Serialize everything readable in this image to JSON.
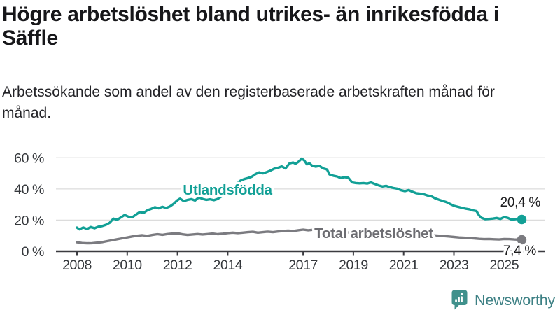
{
  "header": {
    "title": "Högre arbetslöshet bland utrikes- än inrikesfödda i Säffle",
    "subtitle": "Arbetssökande som andel av den registerbaserade arbetskraften månad för månad."
  },
  "chart_data": {
    "type": "line",
    "title": "Högre arbetslöshet bland utrikes- än inrikesfödda i Säffle",
    "subtitle": "Arbetssökande som andel av den registerbaserade arbetskraften månad för månad.",
    "y_unit": "%",
    "ylim": [
      0,
      60
    ],
    "grid": "horizontal-only",
    "legend_position": "inline-series-labels",
    "yticks": [
      {
        "value": 0,
        "label": "0 %"
      },
      {
        "value": 20,
        "label": "20 %"
      },
      {
        "value": 40,
        "label": "40 %"
      },
      {
        "value": 60,
        "label": "60 %"
      }
    ],
    "xticks": [
      {
        "value": 2008,
        "label": "2008"
      },
      {
        "value": 2010,
        "label": "2010"
      },
      {
        "value": 2012,
        "label": "2012"
      },
      {
        "value": 2014,
        "label": "2014"
      },
      {
        "value": 2017,
        "label": "2017"
      },
      {
        "value": 2019,
        "label": "2019"
      },
      {
        "value": 2021,
        "label": "2021"
      },
      {
        "value": 2023,
        "label": "2023"
      },
      {
        "value": 2025,
        "label": "2025"
      }
    ],
    "series": [
      {
        "name": "Utlandsfödda",
        "color": "#12a096",
        "label_color": "#12a096",
        "end_label": "20,4 %",
        "end_value": 20.4,
        "points": [
          [
            2008.0,
            15.2
          ],
          [
            2008.1,
            14.1
          ],
          [
            2008.25,
            15.3
          ],
          [
            2008.4,
            14.3
          ],
          [
            2008.55,
            15.6
          ],
          [
            2008.7,
            14.8
          ],
          [
            2008.85,
            15.8
          ],
          [
            2009.0,
            16.2
          ],
          [
            2009.15,
            17.0
          ],
          [
            2009.3,
            18.3
          ],
          [
            2009.45,
            21.0
          ],
          [
            2009.6,
            20.2
          ],
          [
            2009.75,
            21.8
          ],
          [
            2009.9,
            23.3
          ],
          [
            2010.05,
            22.2
          ],
          [
            2010.2,
            21.8
          ],
          [
            2010.35,
            23.6
          ],
          [
            2010.5,
            25.2
          ],
          [
            2010.65,
            24.6
          ],
          [
            2010.8,
            26.3
          ],
          [
            2010.95,
            27.2
          ],
          [
            2011.1,
            28.3
          ],
          [
            2011.25,
            27.6
          ],
          [
            2011.4,
            28.6
          ],
          [
            2011.55,
            27.8
          ],
          [
            2011.7,
            28.8
          ],
          [
            2011.85,
            30.5
          ],
          [
            2012.0,
            32.8
          ],
          [
            2012.1,
            33.8
          ],
          [
            2012.25,
            32.2
          ],
          [
            2012.4,
            33.0
          ],
          [
            2012.55,
            33.5
          ],
          [
            2012.7,
            32.6
          ],
          [
            2012.85,
            34.6
          ],
          [
            2013.0,
            33.6
          ],
          [
            2013.15,
            33.0
          ],
          [
            2013.3,
            33.4
          ],
          [
            2013.45,
            32.8
          ],
          [
            2013.6,
            33.6
          ],
          [
            2013.75,
            35.2
          ],
          [
            2013.9,
            36.6
          ],
          [
            2014.05,
            38.6
          ],
          [
            2014.2,
            41.0
          ],
          [
            2014.35,
            43.5
          ],
          [
            2014.5,
            45.3
          ],
          [
            2014.65,
            46.3
          ],
          [
            2014.8,
            47.0
          ],
          [
            2014.95,
            47.8
          ],
          [
            2015.1,
            49.5
          ],
          [
            2015.25,
            50.6
          ],
          [
            2015.4,
            50.0
          ],
          [
            2015.55,
            50.8
          ],
          [
            2015.7,
            51.8
          ],
          [
            2015.85,
            53.0
          ],
          [
            2016.0,
            53.6
          ],
          [
            2016.15,
            54.5
          ],
          [
            2016.3,
            53.2
          ],
          [
            2016.45,
            56.3
          ],
          [
            2016.6,
            57.0
          ],
          [
            2016.7,
            56.2
          ],
          [
            2016.8,
            57.2
          ],
          [
            2016.95,
            59.5
          ],
          [
            2017.05,
            58.2
          ],
          [
            2017.15,
            55.8
          ],
          [
            2017.25,
            56.5
          ],
          [
            2017.35,
            55.0
          ],
          [
            2017.5,
            54.3
          ],
          [
            2017.65,
            54.8
          ],
          [
            2017.8,
            53.2
          ],
          [
            2017.95,
            52.5
          ],
          [
            2018.05,
            49.3
          ],
          [
            2018.2,
            48.5
          ],
          [
            2018.35,
            48.0
          ],
          [
            2018.5,
            47.0
          ],
          [
            2018.65,
            47.6
          ],
          [
            2018.8,
            47.2
          ],
          [
            2018.95,
            44.2
          ],
          [
            2019.1,
            43.8
          ],
          [
            2019.25,
            43.6
          ],
          [
            2019.4,
            43.8
          ],
          [
            2019.55,
            43.5
          ],
          [
            2019.7,
            44.2
          ],
          [
            2019.85,
            43.2
          ],
          [
            2020.0,
            42.3
          ],
          [
            2020.15,
            41.6
          ],
          [
            2020.3,
            42.0
          ],
          [
            2020.45,
            41.2
          ],
          [
            2020.6,
            40.6
          ],
          [
            2020.75,
            40.2
          ],
          [
            2020.9,
            39.2
          ],
          [
            2021.05,
            38.6
          ],
          [
            2021.2,
            39.3
          ],
          [
            2021.35,
            38.2
          ],
          [
            2021.5,
            37.3
          ],
          [
            2021.65,
            37.0
          ],
          [
            2021.8,
            36.6
          ],
          [
            2021.95,
            35.8
          ],
          [
            2022.1,
            35.3
          ],
          [
            2022.25,
            34.0
          ],
          [
            2022.4,
            33.1
          ],
          [
            2022.55,
            32.3
          ],
          [
            2022.7,
            31.6
          ],
          [
            2022.85,
            30.4
          ],
          [
            2023.0,
            29.2
          ],
          [
            2023.15,
            28.6
          ],
          [
            2023.3,
            28.0
          ],
          [
            2023.45,
            27.4
          ],
          [
            2023.6,
            27.0
          ],
          [
            2023.75,
            26.3
          ],
          [
            2023.9,
            25.8
          ],
          [
            2024.0,
            23.0
          ],
          [
            2024.1,
            21.5
          ],
          [
            2024.25,
            20.6
          ],
          [
            2024.4,
            20.8
          ],
          [
            2024.55,
            21.0
          ],
          [
            2024.7,
            21.4
          ],
          [
            2024.85,
            20.8
          ],
          [
            2025.0,
            22.0
          ],
          [
            2025.15,
            21.4
          ],
          [
            2025.3,
            20.3
          ],
          [
            2025.45,
            20.6
          ],
          [
            2025.6,
            21.0
          ],
          [
            2025.7,
            20.4
          ]
        ]
      },
      {
        "name": "Total arbetslöshet",
        "color": "#7b7b80",
        "label_color": "#6d6d72",
        "end_label": "7,4 %",
        "end_value": 7.4,
        "points": [
          [
            2008.0,
            5.8
          ],
          [
            2008.2,
            5.3
          ],
          [
            2008.4,
            5.1
          ],
          [
            2008.6,
            5.2
          ],
          [
            2008.8,
            5.5
          ],
          [
            2009.0,
            5.9
          ],
          [
            2009.2,
            6.5
          ],
          [
            2009.4,
            7.1
          ],
          [
            2009.6,
            7.7
          ],
          [
            2009.8,
            8.3
          ],
          [
            2010.0,
            8.9
          ],
          [
            2010.2,
            9.5
          ],
          [
            2010.4,
            10.0
          ],
          [
            2010.6,
            10.3
          ],
          [
            2010.8,
            9.9
          ],
          [
            2011.0,
            10.5
          ],
          [
            2011.2,
            11.0
          ],
          [
            2011.4,
            10.6
          ],
          [
            2011.6,
            11.1
          ],
          [
            2011.8,
            11.4
          ],
          [
            2012.0,
            11.6
          ],
          [
            2012.2,
            10.9
          ],
          [
            2012.4,
            10.5
          ],
          [
            2012.6,
            10.8
          ],
          [
            2012.8,
            11.1
          ],
          [
            2013.0,
            10.8
          ],
          [
            2013.2,
            11.1
          ],
          [
            2013.4,
            11.4
          ],
          [
            2013.6,
            11.0
          ],
          [
            2013.8,
            11.3
          ],
          [
            2014.0,
            11.7
          ],
          [
            2014.2,
            12.0
          ],
          [
            2014.4,
            11.7
          ],
          [
            2014.6,
            12.0
          ],
          [
            2014.8,
            12.3
          ],
          [
            2015.0,
            12.5
          ],
          [
            2015.2,
            12.0
          ],
          [
            2015.4,
            12.3
          ],
          [
            2015.6,
            12.6
          ],
          [
            2015.8,
            12.3
          ],
          [
            2016.0,
            12.7
          ],
          [
            2016.2,
            13.0
          ],
          [
            2016.4,
            13.3
          ],
          [
            2016.6,
            13.0
          ],
          [
            2016.8,
            13.5
          ],
          [
            2017.0,
            13.9
          ],
          [
            2017.2,
            13.5
          ],
          [
            2017.4,
            13.8
          ],
          [
            2017.6,
            13.5
          ],
          [
            2017.8,
            13.2
          ],
          [
            2018.0,
            12.9
          ],
          [
            2018.3,
            12.6
          ],
          [
            2018.6,
            12.3
          ],
          [
            2019.0,
            11.9
          ],
          [
            2019.4,
            11.6
          ],
          [
            2019.8,
            11.8
          ],
          [
            2020.1,
            12.1
          ],
          [
            2020.4,
            12.3
          ],
          [
            2020.7,
            11.9
          ],
          [
            2021.0,
            11.5
          ],
          [
            2021.3,
            11.1
          ],
          [
            2021.6,
            10.8
          ],
          [
            2022.0,
            10.4
          ],
          [
            2022.3,
            10.1
          ],
          [
            2022.6,
            9.8
          ],
          [
            2022.8,
            9.5
          ],
          [
            2023.0,
            9.2
          ],
          [
            2023.2,
            8.9
          ],
          [
            2023.4,
            8.7
          ],
          [
            2023.6,
            8.5
          ],
          [
            2023.8,
            8.3
          ],
          [
            2024.0,
            8.0
          ],
          [
            2024.2,
            7.8
          ],
          [
            2024.4,
            7.9
          ],
          [
            2024.6,
            7.7
          ],
          [
            2024.8,
            7.6
          ],
          [
            2025.0,
            7.9
          ],
          [
            2025.2,
            7.8
          ],
          [
            2025.4,
            7.6
          ],
          [
            2025.55,
            7.5
          ],
          [
            2025.7,
            7.4
          ]
        ]
      }
    ]
  },
  "branding": {
    "logo_text": "Newsworthy",
    "icon": "newsworthy-speech-bubble-bar-chart-icon",
    "icon_color": "#40918c",
    "text_color": "#3d8084"
  },
  "colors": {
    "axis": "#3b3b40",
    "grid": "#dcdcdc",
    "annotation": "#1d1d1f",
    "title_text": "#17171a"
  }
}
